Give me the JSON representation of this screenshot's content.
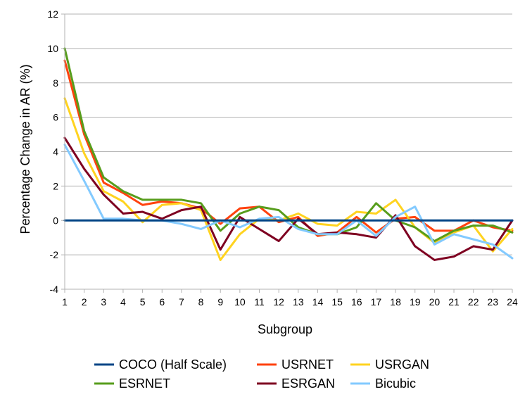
{
  "chart_data": {
    "type": "line",
    "title": "",
    "xlabel": "Subgroup",
    "ylabel": "Percentage Change in AR (%)",
    "ylim": [
      -4,
      12
    ],
    "yticks": [
      -4,
      -2,
      0,
      2,
      4,
      6,
      8,
      10,
      12
    ],
    "grid": "horizontal",
    "legend_position": "bottom",
    "x": [
      1,
      2,
      3,
      4,
      5,
      6,
      7,
      8,
      9,
      10,
      11,
      12,
      13,
      14,
      15,
      16,
      17,
      18,
      19,
      20,
      21,
      22,
      23,
      24
    ],
    "series": [
      {
        "name": "COCO (Half Scale)",
        "color": "#004586",
        "values": [
          0,
          0,
          0,
          0,
          0,
          0,
          0,
          0,
          0,
          0,
          0,
          0,
          0,
          0,
          0,
          0,
          0,
          0,
          0,
          0,
          0,
          0,
          0,
          0
        ]
      },
      {
        "name": "USRNET",
        "color": "#ff420e",
        "values": [
          9.3,
          5.0,
          2.2,
          1.6,
          0.9,
          1.1,
          1.0,
          0.7,
          -0.2,
          0.7,
          0.8,
          -0.1,
          0.2,
          -0.9,
          -0.7,
          0.2,
          -0.7,
          0.1,
          0.2,
          -0.6,
          -0.6,
          0.0,
          -0.4,
          -0.6
        ]
      },
      {
        "name": "USRGAN",
        "color": "#ffd320",
        "values": [
          7.1,
          3.9,
          1.7,
          1.1,
          -0.1,
          0.9,
          1.0,
          0.6,
          -2.3,
          -0.8,
          0.1,
          0.0,
          0.4,
          -0.2,
          -0.3,
          0.5,
          0.4,
          1.2,
          -0.4,
          -1.3,
          -0.7,
          -0.3,
          -1.8,
          -0.5
        ]
      },
      {
        "name": "ESRNET",
        "color": "#579d1c",
        "values": [
          10.0,
          5.2,
          2.5,
          1.7,
          1.2,
          1.2,
          1.2,
          1.0,
          -0.6,
          0.4,
          0.8,
          0.6,
          -0.4,
          -0.8,
          -0.8,
          -0.4,
          1.0,
          0.0,
          -0.4,
          -1.2,
          -0.6,
          -0.3,
          -0.3,
          -0.7
        ]
      },
      {
        "name": "ESRGAN",
        "color": "#7e0021",
        "values": [
          4.8,
          3.0,
          1.5,
          0.4,
          0.5,
          0.1,
          0.6,
          0.8,
          -1.7,
          0.2,
          -0.5,
          -1.2,
          0.1,
          -0.8,
          -0.7,
          -0.8,
          -1.0,
          0.3,
          -1.5,
          -2.3,
          -2.1,
          -1.5,
          -1.7,
          0.0
        ]
      },
      {
        "name": "Bicubic",
        "color": "#83caff",
        "values": [
          4.4,
          2.3,
          0.1,
          0.1,
          0.0,
          0.0,
          -0.2,
          -0.5,
          0.0,
          -0.4,
          0.1,
          0.2,
          -0.5,
          -0.8,
          -0.8,
          0.0,
          -0.9,
          0.2,
          0.8,
          -1.4,
          -0.8,
          -1.1,
          -1.4,
          -2.2
        ]
      }
    ]
  }
}
